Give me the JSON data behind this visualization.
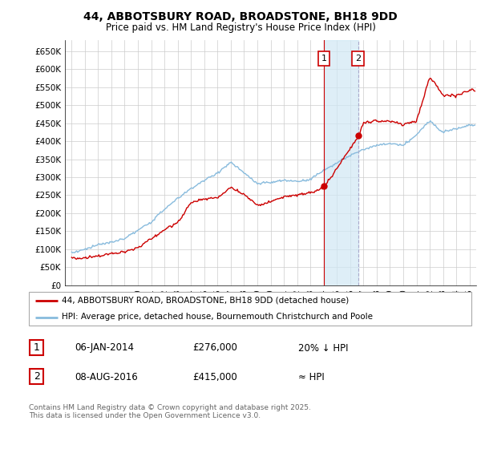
{
  "title": "44, ABBOTSBURY ROAD, BROADSTONE, BH18 9DD",
  "subtitle": "Price paid vs. HM Land Registry's House Price Index (HPI)",
  "ylabel_ticks": [
    "£0",
    "£50K",
    "£100K",
    "£150K",
    "£200K",
    "£250K",
    "£300K",
    "£350K",
    "£400K",
    "£450K",
    "£500K",
    "£550K",
    "£600K",
    "£650K"
  ],
  "ytick_values": [
    0,
    50000,
    100000,
    150000,
    200000,
    250000,
    300000,
    350000,
    400000,
    450000,
    500000,
    550000,
    600000,
    650000
  ],
  "ylim": [
    0,
    680000
  ],
  "xlim_start": 1994.5,
  "xlim_end": 2025.5,
  "xtick_years": [
    1995,
    1996,
    1997,
    1998,
    1999,
    2000,
    2001,
    2002,
    2003,
    2004,
    2005,
    2006,
    2007,
    2008,
    2009,
    2010,
    2011,
    2012,
    2013,
    2014,
    2015,
    2016,
    2017,
    2018,
    2019,
    2020,
    2021,
    2022,
    2023,
    2024,
    2025
  ],
  "hpi_color": "#88bbdd",
  "price_color": "#cc0000",
  "marker1_date": 2014.02,
  "marker2_date": 2016.6,
  "marker1_price": 276000,
  "marker2_price": 415000,
  "shade_color": "#d0e8f5",
  "legend_label_red": "44, ABBOTSBURY ROAD, BROADSTONE, BH18 9DD (detached house)",
  "legend_label_blue": "HPI: Average price, detached house, Bournemouth Christchurch and Poole",
  "annotation1_label": "1",
  "annotation2_label": "2",
  "table_row1": [
    "1",
    "06-JAN-2014",
    "£276,000",
    "20% ↓ HPI"
  ],
  "table_row2": [
    "2",
    "08-AUG-2016",
    "£415,000",
    "≈ HPI"
  ],
  "footer": "Contains HM Land Registry data © Crown copyright and database right 2025.\nThis data is licensed under the Open Government Licence v3.0.",
  "background_color": "#ffffff",
  "hpi_base_years": [
    1995,
    1996,
    1997,
    1998,
    1999,
    2000,
    2001,
    2002,
    2003,
    2004,
    2005,
    2006,
    2007,
    2008,
    2009,
    2010,
    2011,
    2012,
    2013,
    2014,
    2015,
    2016,
    2017,
    2018,
    2019,
    2020,
    2021,
    2022,
    2023,
    2024,
    2025
  ],
  "hpi_base_vals": [
    90000,
    100000,
    112000,
    120000,
    130000,
    150000,
    175000,
    210000,
    240000,
    268000,
    290000,
    310000,
    340000,
    310000,
    280000,
    285000,
    290000,
    288000,
    295000,
    320000,
    340000,
    360000,
    380000,
    390000,
    395000,
    390000,
    420000,
    460000,
    430000,
    440000,
    450000
  ],
  "price_base_years": [
    1995,
    1996,
    1997,
    1998,
    1999,
    2000,
    2001,
    2002,
    2003,
    2004,
    2005,
    2006,
    2007,
    2008,
    2009,
    2010,
    2011,
    2012,
    2013,
    2014.02,
    2016.6,
    2017,
    2018,
    2019,
    2020,
    2021,
    2022,
    2022.5,
    2023,
    2024,
    2025
  ],
  "price_base_vals": [
    75000,
    75000,
    82000,
    88000,
    93000,
    105000,
    130000,
    155000,
    175000,
    230000,
    240000,
    245000,
    275000,
    255000,
    225000,
    235000,
    250000,
    255000,
    260000,
    276000,
    415000,
    455000,
    460000,
    460000,
    450000,
    460000,
    580000,
    560000,
    530000,
    530000,
    545000
  ]
}
